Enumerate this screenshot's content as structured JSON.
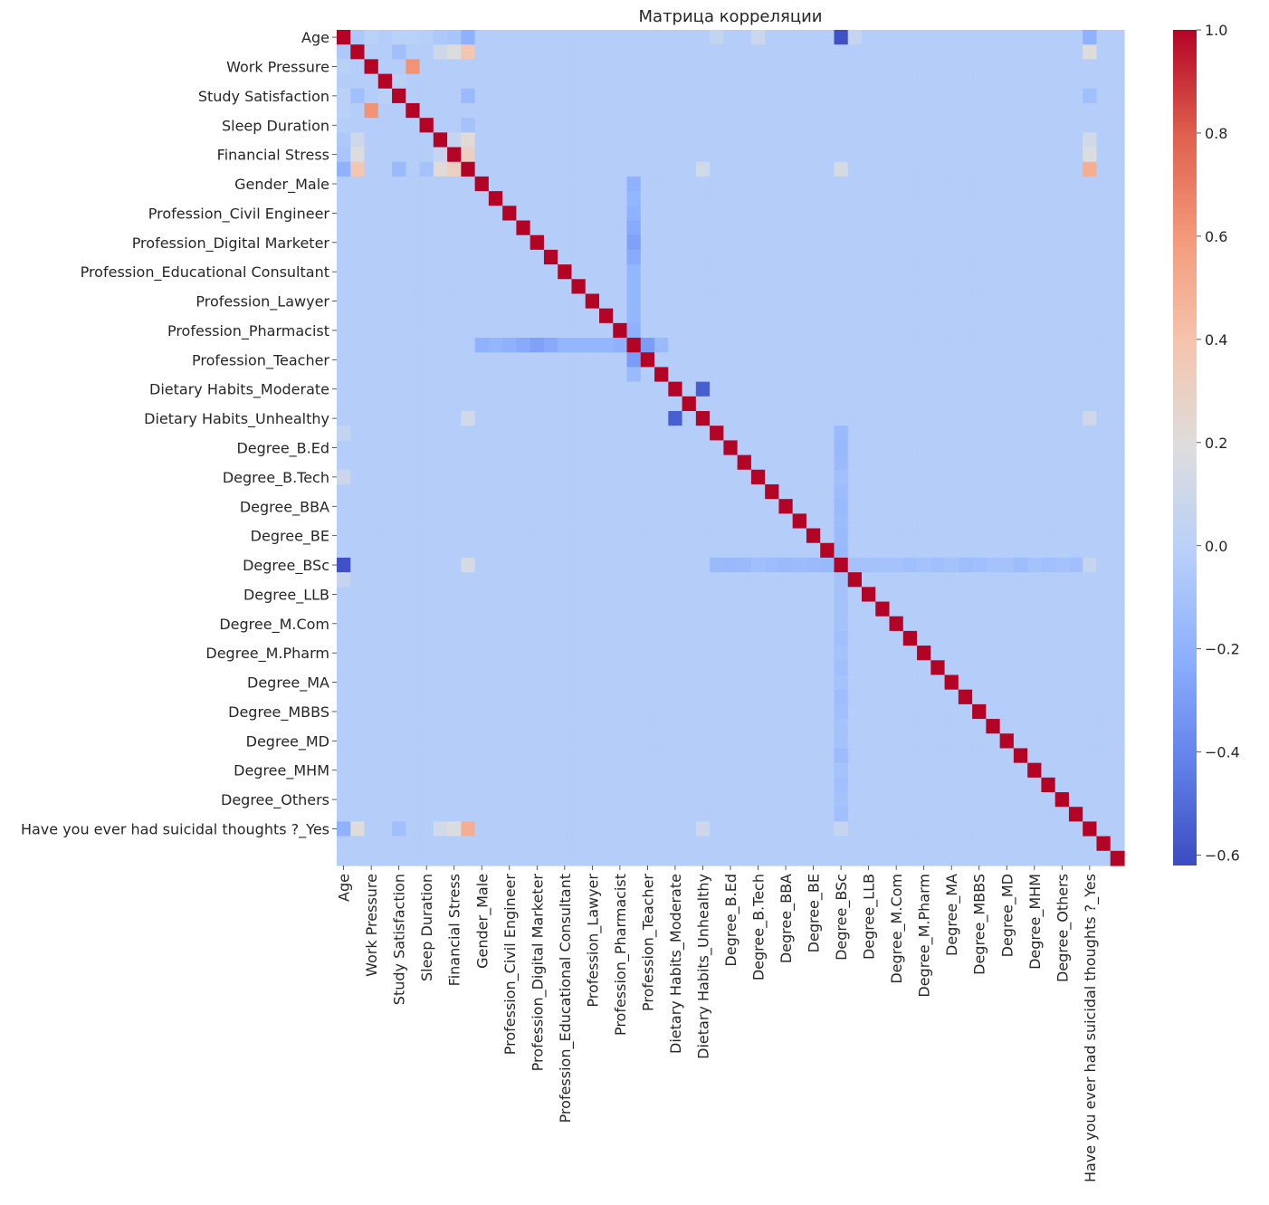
{
  "chart_data": {
    "type": "heatmap",
    "title": "Матрица корреляции",
    "xlabel": "",
    "ylabel": "",
    "colormap": "coolwarm",
    "vmin": -0.62,
    "vmax": 1.0,
    "colorbar_ticks": [
      1.0,
      0.8,
      0.6,
      0.4,
      0.2,
      0.0,
      -0.2,
      -0.4,
      -0.6
    ],
    "colorbar_tick_labels": [
      "1.0",
      "0.8",
      "0.6",
      "0.4",
      "0.2",
      "0.0",
      "−0.2",
      "−0.4",
      "−0.6"
    ],
    "n": 57,
    "tick_labels": [
      {
        "index": 0,
        "label": "Age"
      },
      {
        "index": 2,
        "label": "Work Pressure"
      },
      {
        "index": 4,
        "label": "Study Satisfaction"
      },
      {
        "index": 6,
        "label": "Sleep Duration"
      },
      {
        "index": 8,
        "label": "Financial Stress"
      },
      {
        "index": 10,
        "label": "Gender_Male"
      },
      {
        "index": 12,
        "label": "Profession_Civil Engineer"
      },
      {
        "index": 14,
        "label": "Profession_Digital Marketer"
      },
      {
        "index": 16,
        "label": "Profession_Educational Consultant"
      },
      {
        "index": 18,
        "label": "Profession_Lawyer"
      },
      {
        "index": 20,
        "label": "Profession_Pharmacist"
      },
      {
        "index": 22,
        "label": "Profession_Teacher"
      },
      {
        "index": 24,
        "label": "Dietary Habits_Moderate"
      },
      {
        "index": 26,
        "label": "Dietary Habits_Unhealthy"
      },
      {
        "index": 28,
        "label": "Degree_B.Ed"
      },
      {
        "index": 30,
        "label": "Degree_B.Tech"
      },
      {
        "index": 32,
        "label": "Degree_BBA"
      },
      {
        "index": 34,
        "label": "Degree_BE"
      },
      {
        "index": 36,
        "label": "Degree_BSc"
      },
      {
        "index": 38,
        "label": "Degree_LLB"
      },
      {
        "index": 40,
        "label": "Degree_M.Com"
      },
      {
        "index": 42,
        "label": "Degree_M.Pharm"
      },
      {
        "index": 44,
        "label": "Degree_MA"
      },
      {
        "index": 46,
        "label": "Degree_MBBS"
      },
      {
        "index": 48,
        "label": "Degree_MD"
      },
      {
        "index": 50,
        "label": "Degree_MHM"
      },
      {
        "index": 52,
        "label": "Degree_Others"
      },
      {
        "index": 54,
        "label": "Have you ever had suicidal thoughts ?_Yes"
      }
    ],
    "default_value": -0.03,
    "correlations": [
      [
        0,
        1,
        -0.06
      ],
      [
        0,
        2,
        0.0
      ],
      [
        0,
        4,
        0.0
      ],
      [
        0,
        5,
        0.0
      ],
      [
        0,
        6,
        -0.02
      ],
      [
        0,
        7,
        -0.06
      ],
      [
        0,
        8,
        -0.08
      ],
      [
        0,
        9,
        -0.2
      ],
      [
        0,
        27,
        0.05
      ],
      [
        0,
        30,
        0.08
      ],
      [
        0,
        36,
        -0.6
      ],
      [
        0,
        37,
        0.06
      ],
      [
        0,
        54,
        -0.2
      ],
      [
        1,
        4,
        -0.12
      ],
      [
        1,
        7,
        0.1
      ],
      [
        1,
        8,
        0.18
      ],
      [
        1,
        9,
        0.37
      ],
      [
        1,
        54,
        0.2
      ],
      [
        2,
        5,
        0.62
      ],
      [
        3,
        4,
        0.0
      ],
      [
        4,
        9,
        -0.15
      ],
      [
        4,
        54,
        -0.12
      ],
      [
        6,
        9,
        -0.1
      ],
      [
        7,
        8,
        0.06
      ],
      [
        7,
        9,
        0.22
      ],
      [
        7,
        54,
        0.12
      ],
      [
        8,
        9,
        0.3
      ],
      [
        8,
        54,
        0.18
      ],
      [
        9,
        26,
        0.12
      ],
      [
        9,
        36,
        0.14
      ],
      [
        9,
        54,
        0.5
      ],
      [
        10,
        21,
        -0.2
      ],
      [
        11,
        21,
        -0.18
      ],
      [
        12,
        21,
        -0.2
      ],
      [
        13,
        21,
        -0.24
      ],
      [
        14,
        21,
        -0.28
      ],
      [
        15,
        21,
        -0.24
      ],
      [
        16,
        21,
        -0.18
      ],
      [
        17,
        21,
        -0.18
      ],
      [
        18,
        21,
        -0.18
      ],
      [
        19,
        21,
        -0.18
      ],
      [
        20,
        21,
        -0.2
      ],
      [
        21,
        22,
        -0.3
      ],
      [
        21,
        23,
        -0.15
      ],
      [
        24,
        26,
        -0.55
      ],
      [
        26,
        54,
        0.1
      ],
      [
        36,
        27,
        -0.15
      ],
      [
        36,
        28,
        -0.16
      ],
      [
        36,
        29,
        -0.15
      ],
      [
        36,
        30,
        -0.12
      ],
      [
        36,
        31,
        -0.14
      ],
      [
        36,
        32,
        -0.15
      ],
      [
        36,
        33,
        -0.14
      ],
      [
        36,
        34,
        -0.15
      ],
      [
        36,
        35,
        -0.16
      ],
      [
        36,
        37,
        -0.1
      ],
      [
        36,
        38,
        -0.1
      ],
      [
        36,
        39,
        -0.1
      ],
      [
        36,
        40,
        -0.1
      ],
      [
        36,
        41,
        -0.12
      ],
      [
        36,
        42,
        -0.1
      ],
      [
        36,
        43,
        -0.12
      ],
      [
        36,
        44,
        -0.1
      ],
      [
        36,
        45,
        -0.13
      ],
      [
        36,
        46,
        -0.12
      ],
      [
        36,
        47,
        -0.1
      ],
      [
        36,
        48,
        -0.1
      ],
      [
        36,
        49,
        -0.14
      ],
      [
        36,
        50,
        -0.1
      ],
      [
        36,
        51,
        -0.12
      ],
      [
        36,
        52,
        -0.1
      ],
      [
        36,
        53,
        -0.12
      ],
      [
        36,
        54,
        0.06
      ]
    ]
  }
}
